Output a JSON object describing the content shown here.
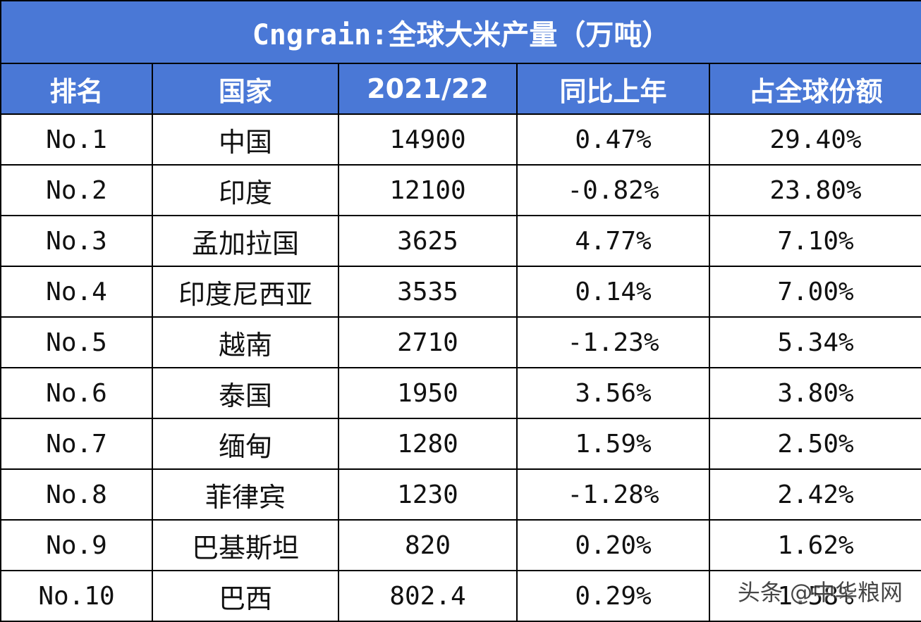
{
  "chart_data": {
    "type": "table",
    "title": "Cngrain:全球大米产量（万吨）",
    "columns": [
      "排名",
      "国家",
      "2021/22",
      "同比上年",
      "占全球份额"
    ],
    "rows": [
      [
        "No.1",
        "中国",
        "14900",
        "0.47%",
        "29.40%"
      ],
      [
        "No.2",
        "印度",
        "12100",
        "-0.82%",
        "23.80%"
      ],
      [
        "No.3",
        "孟加拉国",
        "3625",
        "4.77%",
        "7.10%"
      ],
      [
        "No.4",
        "印度尼西亚",
        "3535",
        "0.14%",
        "7.00%"
      ],
      [
        "No.5",
        "越南",
        "2710",
        "-1.23%",
        "5.34%"
      ],
      [
        "No.6",
        "泰国",
        "1950",
        "3.56%",
        "3.80%"
      ],
      [
        "No.7",
        "缅甸",
        "1280",
        "1.59%",
        "2.50%"
      ],
      [
        "No.8",
        "菲律宾",
        "1230",
        "-1.28%",
        "2.42%"
      ],
      [
        "No.9",
        "巴基斯坦",
        "820",
        "0.20%",
        "1.62%"
      ],
      [
        "No.10",
        "巴西",
        "802.4",
        "0.29%",
        "1.58%"
      ]
    ]
  },
  "watermark": "头条 @中华粮网",
  "colors": {
    "header_bg": "#4a78d6",
    "header_text": "#ffffff",
    "border": "#000000"
  }
}
